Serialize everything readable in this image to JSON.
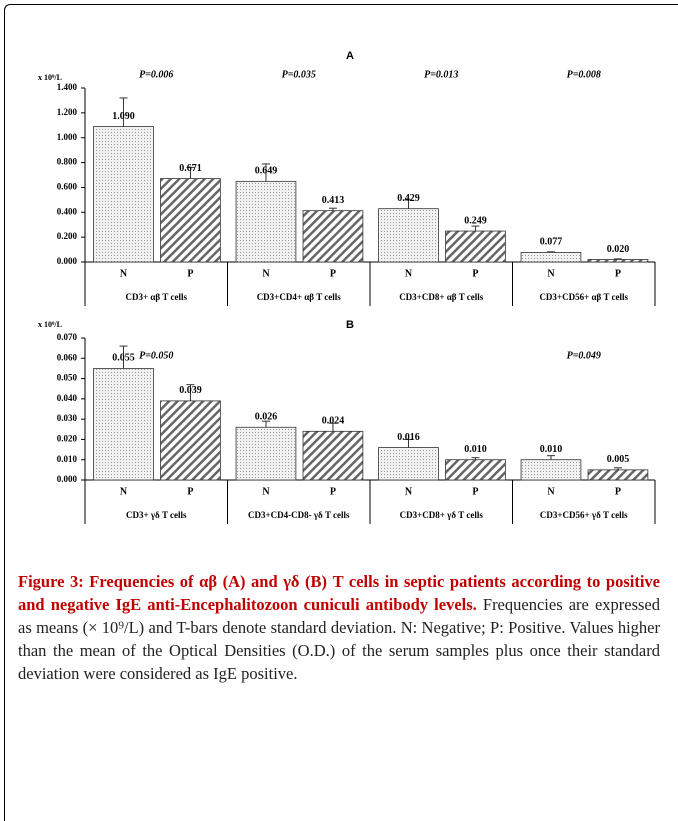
{
  "chart_data": [
    {
      "type": "bar",
      "title": "A",
      "y_unit": "x 10⁹/L",
      "categories": [
        "CD3+ αβ T cells",
        "CD3+CD4+ αβ T cells",
        "CD3+CD8+ αβ T cells",
        "CD3+CD56+ αβ T cells"
      ],
      "p_values": [
        "P=0.006",
        "P=0.035",
        "P=0.013",
        "P=0.008"
      ],
      "series": [
        {
          "name": "N",
          "pattern": "dots",
          "values": [
            1.09,
            0.649,
            0.429,
            0.077
          ],
          "value_labels": [
            "1.090",
            "0.649",
            "0.429",
            "0.077"
          ],
          "errors": [
            0.23,
            0.14,
            0.07,
            0.005
          ]
        },
        {
          "name": "P",
          "pattern": "hatch",
          "values": [
            0.671,
            0.413,
            0.249,
            0.02
          ],
          "value_labels": [
            "0.671",
            "0.413",
            "0.249",
            "0.020"
          ],
          "errors": [
            0.09,
            0.02,
            0.04,
            0.005
          ]
        }
      ],
      "ylim": [
        0,
        1.4
      ],
      "yticks": [
        {
          "value": 0,
          "label": "0.000"
        },
        {
          "value": 0.2,
          "label": "0.200"
        },
        {
          "value": 0.4,
          "label": "0.400"
        },
        {
          "value": 0.6,
          "label": "0.600"
        },
        {
          "value": 0.8,
          "label": "0.800"
        },
        {
          "value": 1.0,
          "label": "1.000"
        },
        {
          "value": 1.2,
          "label": "1.200"
        },
        {
          "value": 1.4,
          "label": "1.400"
        }
      ]
    },
    {
      "type": "bar",
      "title": "B",
      "y_unit": "x 10⁹/L",
      "categories": [
        "CD3+ γδ T cells",
        "CD3+CD4-CD8- γδ T cells",
        "CD3+CD8+ γδ T cells",
        "CD3+CD56+ γδ T cells"
      ],
      "p_values": [
        "P=0.050",
        null,
        null,
        "P=0.049"
      ],
      "series": [
        {
          "name": "N",
          "pattern": "dots",
          "values": [
            0.055,
            0.026,
            0.016,
            0.01
          ],
          "value_labels": [
            "0.055",
            "0.026",
            "0.016",
            "0.010"
          ],
          "errors": [
            0.011,
            0.003,
            0.004,
            0.002
          ]
        },
        {
          "name": "P",
          "pattern": "hatch",
          "values": [
            0.039,
            0.024,
            0.01,
            0.005
          ],
          "value_labels": [
            "0.039",
            "0.024",
            "0.010",
            "0.005"
          ],
          "errors": [
            0.008,
            0.004,
            0.001,
            0.001
          ]
        }
      ],
      "ylim": [
        0,
        0.07
      ],
      "yticks": [
        {
          "value": 0,
          "label": "0.000"
        },
        {
          "value": 0.01,
          "label": "0.010"
        },
        {
          "value": 0.02,
          "label": "0.020"
        },
        {
          "value": 0.03,
          "label": "0.030"
        },
        {
          "value": 0.04,
          "label": "0.040"
        },
        {
          "value": 0.05,
          "label": "0.050"
        },
        {
          "value": 0.06,
          "label": "0.060"
        },
        {
          "value": 0.07,
          "label": "0.070"
        }
      ]
    }
  ],
  "caption": {
    "label": "Figure 3: Frequencies of αβ (A) and γδ (B) T cells in septic patients according to positive and negative IgE anti-Encephalitozoon cuniculi antibody levels.",
    "text": "Frequencies are expressed as means (× 10⁹/L) and T-bars denote standard deviation. N: Negative; P: Positive. Values higher than the mean of the Optical Densities (O.D.) of the serum samples plus once their standard deviation were considered as IgE positive."
  }
}
